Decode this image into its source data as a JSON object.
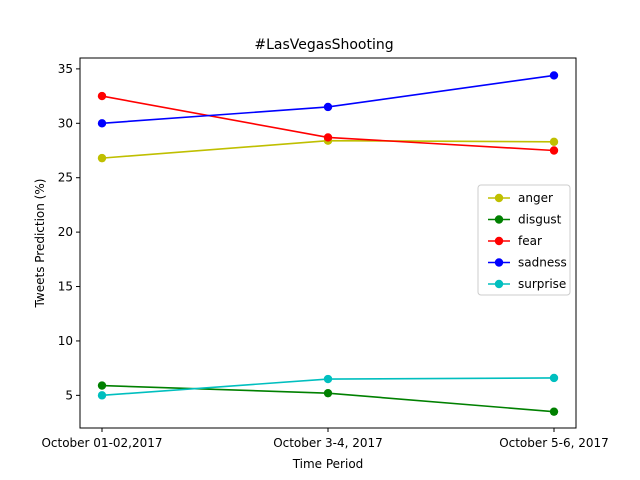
{
  "chart_data": {
    "type": "line",
    "title": "#LasVegasShooting",
    "xlabel": "Time Period",
    "ylabel": "Tweets Prediction (%)",
    "categories": [
      "October 01-02,2017",
      "October 3-4, 2017",
      "October 5-6, 2017"
    ],
    "yticks": [
      5,
      10,
      15,
      20,
      25,
      30,
      35
    ],
    "ylim": [
      2.0,
      36.0
    ],
    "grid": false,
    "legend_position": "right",
    "series": [
      {
        "name": "anger",
        "color": "#bfbf00",
        "values": [
          26.8,
          28.4,
          28.3
        ]
      },
      {
        "name": "disgust",
        "color": "#008000",
        "values": [
          5.9,
          5.2,
          3.5
        ]
      },
      {
        "name": "fear",
        "color": "#ff0000",
        "values": [
          32.5,
          28.7,
          27.5
        ]
      },
      {
        "name": "sadness",
        "color": "#0000ff",
        "values": [
          30.0,
          31.5,
          34.4
        ]
      },
      {
        "name": "surprise",
        "color": "#00bfbf",
        "values": [
          5.0,
          6.5,
          6.6
        ]
      }
    ]
  }
}
